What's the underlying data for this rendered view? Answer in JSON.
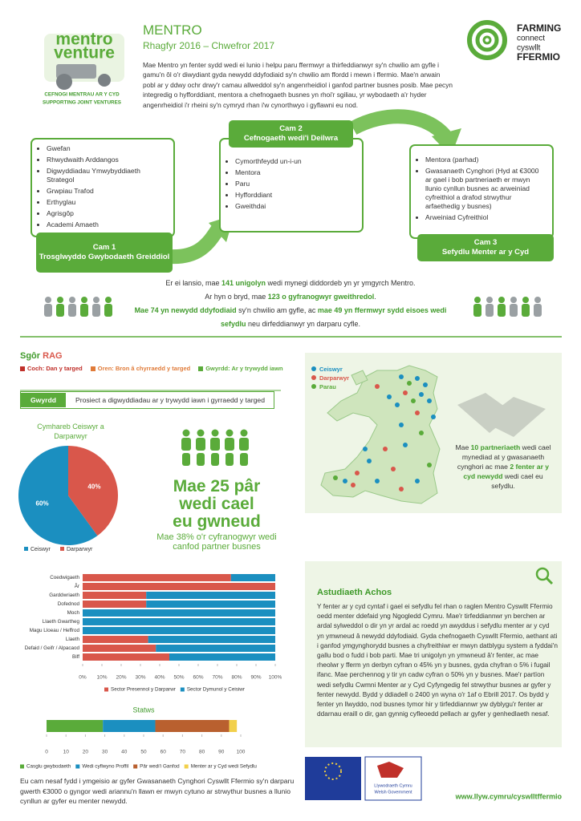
{
  "header": {
    "title": "MENTRO",
    "subtitle": "Rhagfyr 2016 – Chwefror 2017",
    "intro": "Mae Mentro yn fenter sydd wedi ei lunio i helpu paru ffermwyr a thirfeddianwyr sy'n chwilio am gyfle i gamu'n ôl o'r diwydiant gyda newydd ddyfodiaid sy'n chwilio am ffordd i mewn i ffermio. Mae'n arwain pobl ar y ddwy ochr drwy'r camau allweddol sy'n angenrheidiol i ganfod partner busnes posib. Mae pecyn integredig o hyfforddiant, mentora a chefnogaeth busnes yn rhoi'r sgiliau, yr wybodaeth a'r hyder angenrheidiol i'r rheini sy'n cymryd rhan i'w cynorthwyo i gyflawni eu nod."
  },
  "logos": {
    "mentro": "mentro",
    "venture": "venture",
    "tag1": "CEFNOGI MENTRAU AR Y CYD",
    "tag2": "SUPPORTING JOINT VENTURES",
    "fc1": "FARMING",
    "fc2": "connect",
    "fc3": "cyswllt",
    "fc4": "FFERMIO",
    "wg1": "Llywodraeth Cymru",
    "wg2": "Welsh Government"
  },
  "stages": [
    {
      "step": "Cam 1",
      "name": "Trosglwyddo Gwybodaeth Greiddiol",
      "items": [
        "Gwefan",
        "Rhwydwaith Arddangos",
        "Digwyddiadau Ymwybyddiaeth Strategol",
        "Grwpiau Trafod",
        "Erthyglau",
        "Agrisgôp",
        "Academi Amaeth"
      ]
    },
    {
      "step": "Cam 2",
      "name": "Cefnogaeth wedi'i Deilwra",
      "items": [
        "Cymorthfeydd un-i-un",
        "Mentora",
        "Paru",
        "Hyfforddiant",
        "Gweithdai"
      ]
    },
    {
      "step": "Cam 3",
      "name": "Sefydlu Menter ar y Cyd",
      "items": [
        "Mentora (parhad)",
        "Gwasanaeth Cynghori (Hyd at €3000 ar gael i bob partneriaeth er mwyn llunio cynllun busnes ac arweiniad cyfreithiol a drafod strwythur arfaethedig y busnes)",
        "Arweiniad Cyfreithiol"
      ]
    }
  ],
  "summary": [
    [
      "Er ei lansio, mae ",
      "141 unigolyn",
      " wedi mynegi diddordeb yn yr ymgyrch Mentro."
    ],
    [
      "Ar hyn o bryd, mae ",
      "123 o gyfranogwyr gweithredol",
      "."
    ],
    [
      "Mae 74 yn newydd ddyfodiaid",
      " sy'n chwilio am gyfle, ac ",
      "mae 49 yn ffermwyr sydd eisoes wedi sefydlu",
      " neu dirfeddianwyr yn darparu cyfle."
    ]
  ],
  "rag": {
    "title": [
      "Sgôr",
      "RAG"
    ],
    "legend": [
      "Coch: Dan y targed",
      "Oren: Bron â chyrraedd y targed",
      "Gwyrdd: Ar y trywydd iawn"
    ],
    "status": "Gwyrdd",
    "status_text": "Prosiect a digwyddiadau ar y trywydd iawn i gyrraedd y targed"
  },
  "pairs": {
    "headline": [
      "Mae 25 pâr",
      "wedi cael",
      "eu gwneud"
    ],
    "sub": [
      "Mae 38% o'r cyfranogwyr wedi",
      "canfod partner busnes"
    ]
  },
  "map": {
    "legend": [
      "Ceiswyr",
      "Darparwyr",
      "Parau"
    ],
    "text": [
      "Mae ",
      "10 partneriaeth",
      " wedi cael mynediad at y gwasanaeth cynghori ac mae ",
      "2 fenter ar y cyd newydd",
      " wedi cael eu sefydlu."
    ]
  },
  "case_study": {
    "title": "Astudiaeth Achos",
    "body": "Y fenter ar y cyd cyntaf i gael ei sefydlu fel rhan o raglen Mentro Cyswllt Ffermio oedd menter ddefaid yng Ngogledd Cymru. Mae'r tirfeddiannwr yn berchen ar ardal sylweddol o dir yn yr ardal ac roedd yn awyddus i sefydlu menter ar y cyd yn ymwneud â newydd ddyfodiaid. Gyda chefnogaeth Cyswllt Ffermio, aethant ati i ganfod ymgynghorydd busnes a chyfreithiwr er mwyn datblygu system a fyddai'n gallu bod o fudd i bob parti. Mae tri unigolyn yn ymwneud â'r fenter, ac mae rheolwr y fferm yn derbyn cyfran o 45% yn y busnes, gyda chyfran o 5% i fugail ifanc. Mae perchennog y tir yn cadw cyfran o 50% yn y busnes. Mae'r partïon wedi sefydlu Cwmni Menter ar y Cyd Cyfyngedig fel strwythur busnes ar gyfer y fenter newydd. Bydd y ddiadell o 2400 yn wyna o'r 1af o Ebrill 2017. Os bydd y fenter yn llwyddo, nod busnes tymor hir y tirfeddiannwr yw dyblygu'r fenter ar ddarnau eraill o dir, gan gynnig cyfleoedd pellach ar gyfer y genhedlaeth nesaf."
  },
  "next_steps": "Eu cam nesaf fydd i ymgeisio ar gyfer Gwasanaeth Cynghori Cyswllt Ffermio sy'n darparu gwerth €3000 o gyngor wedi ariannu'n llawn er mwyn cytuno ar strwythur busnes a llunio cynllun ar gyfer eu menter newydd.",
  "footer": {
    "url": "www.llyw.cymru/cyswlltffermio"
  },
  "chart_data": [
    {
      "type": "pie",
      "title": "Cymhareb Ceiswyr a Darparwyr",
      "categories": [
        "Ceiswyr",
        "Darparwyr"
      ],
      "values": [
        60,
        40
      ],
      "value_labels": [
        "60%",
        "40%"
      ],
      "colors": [
        "#1b8fc0",
        "#d9574b"
      ]
    },
    {
      "type": "bar",
      "orientation": "horizontal",
      "stacked": true,
      "categories": [
        "Coedwigaeth",
        "Âr",
        "Garddwriaeth",
        "Dofednod",
        "Moch",
        "Llaeth Gwartheg",
        "Magu Lloeau / Heffrod",
        "Llaeth",
        "Defaid / Geifr / Alpacaod",
        "Biff"
      ],
      "series": [
        {
          "name": "Sector Presennol y Darparwr",
          "color": "#d9574b",
          "values": [
            77,
            100,
            33,
            33,
            0,
            0,
            0,
            34,
            38,
            45
          ]
        },
        {
          "name": "Sector Dymunol y Ceisiwr",
          "color": "#1b8fc0",
          "values": [
            23,
            0,
            67,
            67,
            100,
            100,
            100,
            66,
            62,
            55
          ]
        }
      ],
      "xlim": [
        0,
        100
      ],
      "xticks": [
        {
          "value": 0,
          "label": "0%"
        },
        {
          "value": 10,
          "label": "10%"
        },
        {
          "value": 20,
          "label": "20%"
        },
        {
          "value": 30,
          "label": "30%"
        },
        {
          "value": 40,
          "label": "40%"
        },
        {
          "value": 50,
          "label": "50%"
        },
        {
          "value": 60,
          "label": "60%"
        },
        {
          "value": 70,
          "label": "70%"
        },
        {
          "value": 80,
          "label": "80%"
        },
        {
          "value": 90,
          "label": "90%"
        },
        {
          "value": 100,
          "label": "100%"
        }
      ]
    },
    {
      "type": "bar",
      "orientation": "horizontal",
      "stacked": true,
      "title": "Statws",
      "series": [
        {
          "name": "Casglu gwybodaeth",
          "color": "#5aab3a",
          "values": [
            29
          ]
        },
        {
          "name": "Wedi cyflwyno Proffil",
          "color": "#1b8fc0",
          "values": [
            27
          ]
        },
        {
          "name": "Pâr wedi'i Ganfod",
          "color": "#b9602f",
          "values": [
            38
          ]
        },
        {
          "name": "Menter ar y Cyd wedi Sefydlu",
          "color": "#f2d04b",
          "values": [
            4
          ]
        }
      ],
      "xlim": [
        0,
        100
      ],
      "xticks": [
        0,
        10,
        20,
        30,
        40,
        50,
        60,
        70,
        80,
        90,
        100
      ]
    }
  ]
}
